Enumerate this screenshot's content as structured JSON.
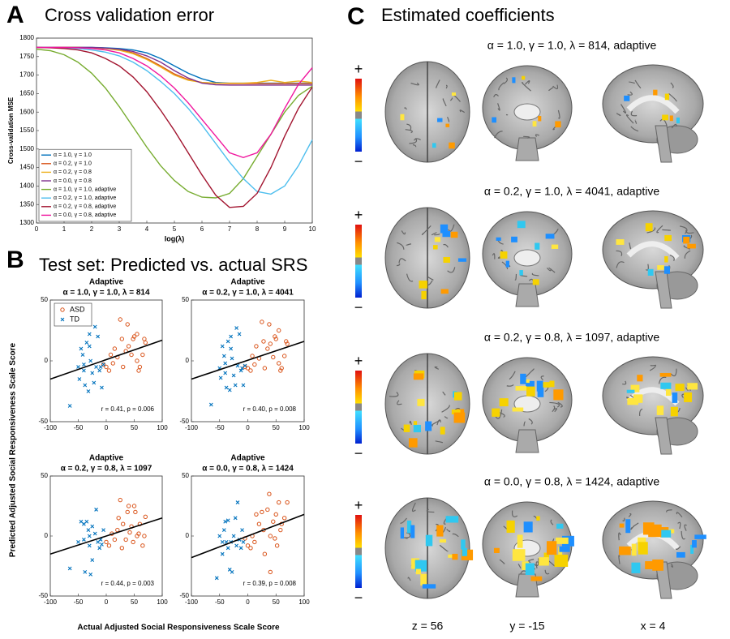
{
  "panel_labels": [
    "A",
    "B",
    "C"
  ],
  "panel_b": {
    "title": "Test set: Predicted vs. actual SRS",
    "xlabel": "Actual Adjusted Social Responsiveness Scale Score",
    "ylabel": "Predicted Adjusted Social Responsiveness Scale Score"
  },
  "panel_c": {
    "title": "Estimated coefficients",
    "rows": [
      "α = 1.0, γ = 1.0, λ = 814, adaptive",
      "α = 0.2, γ = 1.0, λ = 4041, adaptive",
      "α = 0.2, γ = 0.8, λ = 1097, adaptive",
      "α = 0.0, γ = 0.8, λ = 1424, adaptive"
    ],
    "slices": [
      "z = 56",
      "y = -15",
      "x = 4"
    ],
    "colorbar": {
      "plus": "+",
      "minus": "−"
    }
  },
  "chart_data": [
    {
      "type": "line",
      "title": "Cross validation error",
      "xlabel": "log(λ)",
      "ylabel": "Cross-validation MSE",
      "xlim": [
        0,
        10
      ],
      "ylim": [
        1300,
        1800
      ],
      "xticks": [
        0,
        1,
        2,
        3,
        4,
        5,
        6,
        7,
        8,
        9,
        10
      ],
      "yticks": [
        1300,
        1350,
        1400,
        1450,
        1500,
        1550,
        1600,
        1650,
        1700,
        1750,
        1800
      ],
      "legend": "lower left",
      "x": [
        0,
        0.5,
        1,
        1.5,
        2,
        2.5,
        3,
        3.5,
        4,
        4.5,
        5,
        5.5,
        6,
        6.5,
        7,
        7.5,
        8,
        8.5,
        9,
        9.5,
        10
      ],
      "series": [
        {
          "name": "α = 1.0, γ = 1.0",
          "color": "#0072bd",
          "values": [
            1775,
            1775,
            1775,
            1775,
            1775,
            1774,
            1772,
            1768,
            1760,
            1745,
            1725,
            1705,
            1690,
            1680,
            1678,
            1678,
            1678,
            1678,
            1678,
            1678,
            1678
          ]
        },
        {
          "name": "α = 0.2, γ = 1.0",
          "color": "#d95319",
          "values": [
            1775,
            1775,
            1775,
            1775,
            1774,
            1772,
            1768,
            1760,
            1745,
            1725,
            1703,
            1688,
            1680,
            1678,
            1677,
            1677,
            1677,
            1677,
            1677,
            1677,
            1677
          ]
        },
        {
          "name": "α = 0.2, γ = 0.8",
          "color": "#edb120",
          "values": [
            1775,
            1775,
            1775,
            1775,
            1774,
            1772,
            1767,
            1758,
            1742,
            1722,
            1700,
            1686,
            1680,
            1678,
            1678,
            1678,
            1680,
            1686,
            1680,
            1684,
            1680
          ]
        },
        {
          "name": "α = 0.0, γ = 0.8",
          "color": "#7e2f8e",
          "values": [
            1775,
            1775,
            1775,
            1775,
            1775,
            1773,
            1770,
            1764,
            1752,
            1735,
            1712,
            1692,
            1678,
            1674,
            1673,
            1673,
            1673,
            1673,
            1673,
            1673,
            1673
          ]
        },
        {
          "name": "α = 1.0, γ = 1.0, adaptive",
          "color": "#77ac30",
          "values": [
            1770,
            1766,
            1755,
            1735,
            1705,
            1665,
            1615,
            1560,
            1505,
            1455,
            1415,
            1385,
            1370,
            1368,
            1380,
            1420,
            1480,
            1540,
            1600,
            1645,
            1670
          ]
        },
        {
          "name": "α = 0.2, γ = 1.0, adaptive",
          "color": "#4dbeee",
          "values": [
            1775,
            1775,
            1774,
            1772,
            1768,
            1762,
            1752,
            1735,
            1712,
            1683,
            1650,
            1610,
            1565,
            1515,
            1465,
            1420,
            1385,
            1378,
            1400,
            1455,
            1525
          ]
        },
        {
          "name": "α = 0.2, γ = 0.8, adaptive",
          "color": "#a2142f",
          "values": [
            1775,
            1774,
            1772,
            1768,
            1760,
            1745,
            1725,
            1695,
            1655,
            1605,
            1550,
            1490,
            1430,
            1375,
            1342,
            1345,
            1380,
            1450,
            1535,
            1610,
            1668
          ]
        },
        {
          "name": "α = 0.0, γ = 0.8, adaptive",
          "color": "#f0169e",
          "values": [
            1775,
            1775,
            1775,
            1774,
            1772,
            1768,
            1760,
            1745,
            1725,
            1698,
            1665,
            1625,
            1580,
            1535,
            1490,
            1477,
            1490,
            1540,
            1610,
            1675,
            1720
          ]
        }
      ]
    },
    {
      "type": "scatter",
      "title": "Adaptive",
      "subtitle": "α = 1.0, γ = 1.0, λ = 814",
      "annotation": "r = 0.41, p = 0.006",
      "legend": "upper left",
      "xlim": [
        -100,
        100
      ],
      "ylim": [
        -50,
        50
      ],
      "xticks": [
        -100,
        -50,
        0,
        50,
        100
      ],
      "yticks": [
        -50,
        0,
        50
      ],
      "series": [
        {
          "name": "ASD",
          "color": "#d95319",
          "marker": "o",
          "x": [
            -5,
            0,
            5,
            8,
            12,
            15,
            20,
            25,
            28,
            30,
            35,
            38,
            40,
            45,
            48,
            50,
            55,
            58,
            60,
            65,
            68,
            70,
            55
          ],
          "y": [
            -3,
            -5,
            -8,
            5,
            -2,
            10,
            3,
            34,
            18,
            -5,
            8,
            30,
            12,
            5,
            18,
            20,
            22,
            -8,
            -5,
            5,
            18,
            15,
            0
          ]
        },
        {
          "name": "TD",
          "color": "#0072bd",
          "marker": "x",
          "x": [
            -65,
            -50,
            -48,
            -45,
            -42,
            -40,
            -38,
            -35,
            -32,
            -30,
            -28,
            -25,
            -22,
            -20,
            -18,
            -15,
            -12,
            -10,
            -8,
            -5,
            -30,
            -40
          ],
          "y": [
            -37,
            -5,
            -15,
            10,
            5,
            -8,
            -20,
            15,
            -25,
            12,
            0,
            -10,
            -18,
            28,
            -5,
            20,
            -8,
            -5,
            -22,
            -3,
            22,
            -3
          ]
        }
      ],
      "fit": {
        "x": [
          -100,
          100
        ],
        "y": [
          -15,
          17
        ]
      }
    },
    {
      "type": "scatter",
      "title": "Adaptive",
      "subtitle": "α = 0.2, γ = 1.0, λ = 4041",
      "annotation": "r = 0.40, p = 0.008",
      "xlim": [
        -100,
        100
      ],
      "ylim": [
        -50,
        50
      ],
      "xticks": [
        -100,
        -50,
        0,
        50,
        100
      ],
      "yticks": [
        -50,
        0,
        50
      ],
      "series": [
        {
          "name": "ASD",
          "color": "#d95319",
          "marker": "o",
          "x": [
            -5,
            0,
            5,
            8,
            12,
            15,
            20,
            25,
            28,
            30,
            35,
            38,
            40,
            45,
            48,
            50,
            55,
            58,
            60,
            65,
            68,
            70,
            55
          ],
          "y": [
            -5,
            -6,
            -8,
            4,
            -3,
            12,
            2,
            32,
            16,
            -6,
            10,
            30,
            14,
            3,
            20,
            18,
            25,
            -8,
            -6,
            4,
            16,
            14,
            -2
          ]
        },
        {
          "name": "TD",
          "color": "#0072bd",
          "marker": "x",
          "x": [
            -65,
            -50,
            -48,
            -45,
            -42,
            -40,
            -38,
            -35,
            -32,
            -30,
            -28,
            -25,
            -22,
            -20,
            -18,
            -15,
            -12,
            -10,
            -8,
            -5,
            -30,
            -40
          ],
          "y": [
            -36,
            -6,
            -14,
            12,
            4,
            -10,
            -22,
            16,
            -24,
            10,
            2,
            -12,
            -20,
            27,
            -4,
            22,
            -8,
            -6,
            -20,
            -4,
            20,
            -2
          ]
        }
      ],
      "fit": {
        "x": [
          -100,
          100
        ],
        "y": [
          -15,
          16
        ]
      }
    },
    {
      "type": "scatter",
      "title": "Adaptive",
      "subtitle": "α = 0.2, γ = 0.8, λ = 1097",
      "annotation": "r = 0.44, p = 0.003",
      "xlim": [
        -100,
        100
      ],
      "ylim": [
        -50,
        50
      ],
      "xticks": [
        -100,
        -50,
        0,
        50,
        100
      ],
      "yticks": [
        -50,
        0,
        50
      ],
      "series": [
        {
          "name": "ASD",
          "color": "#d95319",
          "marker": "o",
          "x": [
            0,
            5,
            10,
            15,
            20,
            22,
            25,
            30,
            35,
            38,
            40,
            42,
            45,
            48,
            50,
            52,
            55,
            58,
            60,
            65,
            68,
            70,
            28
          ],
          "y": [
            -5,
            -8,
            2,
            -3,
            5,
            15,
            30,
            10,
            -3,
            20,
            25,
            3,
            8,
            -5,
            25,
            20,
            0,
            2,
            10,
            -8,
            0,
            16,
            -10
          ]
        },
        {
          "name": "TD",
          "color": "#0072bd",
          "marker": "x",
          "x": [
            -65,
            -45,
            -40,
            -38,
            -35,
            -32,
            -30,
            -28,
            -25,
            -25,
            -20,
            -18,
            -15,
            -12,
            -10,
            -8,
            -5,
            -40,
            -50,
            -30
          ],
          "y": [
            -27,
            12,
            10,
            -30,
            12,
            5,
            -8,
            -32,
            -20,
            8,
            2,
            22,
            -5,
            -10,
            -3,
            -7,
            5,
            -3,
            -5,
            0
          ]
        }
      ],
      "fit": {
        "x": [
          -100,
          100
        ],
        "y": [
          -15,
          15
        ]
      }
    },
    {
      "type": "scatter",
      "title": "Adaptive",
      "subtitle": "α = 0.0, γ = 0.8, λ = 1424",
      "annotation": "r = 0.39, p = 0.008",
      "xlim": [
        -100,
        100
      ],
      "ylim": [
        -50,
        50
      ],
      "xticks": [
        -100,
        -50,
        0,
        50,
        100
      ],
      "yticks": [
        -50,
        0,
        50
      ],
      "series": [
        {
          "name": "ASD",
          "color": "#d95319",
          "marker": "o",
          "x": [
            -5,
            0,
            5,
            8,
            12,
            15,
            20,
            25,
            28,
            30,
            35,
            38,
            40,
            45,
            48,
            50,
            52,
            55,
            58,
            60,
            65,
            70,
            40
          ],
          "y": [
            -2,
            -8,
            -10,
            0,
            -5,
            18,
            10,
            20,
            5,
            -15,
            22,
            35,
            -30,
            12,
            -2,
            18,
            -8,
            28,
            5,
            10,
            15,
            28,
            0
          ]
        },
        {
          "name": "TD",
          "color": "#0072bd",
          "marker": "x",
          "x": [
            -55,
            -50,
            -45,
            -42,
            -40,
            -38,
            -35,
            -32,
            -30,
            -28,
            -25,
            -22,
            -20,
            -18,
            -15,
            -12,
            -10,
            -8,
            -35,
            -45
          ],
          "y": [
            -35,
            0,
            -15,
            5,
            12,
            -5,
            13,
            -28,
            -5,
            -30,
            0,
            15,
            -8,
            28,
            -3,
            -10,
            5,
            -5,
            -10,
            -5
          ]
        }
      ],
      "fit": {
        "x": [
          -100,
          100
        ],
        "y": [
          -18,
          18
        ]
      }
    }
  ]
}
